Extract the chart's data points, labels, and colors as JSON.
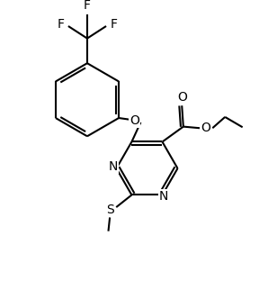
{
  "bg_color": "#ffffff",
  "line_color": "#000000",
  "line_width": 1.5,
  "font_size": 9,
  "figsize": [
    2.88,
    3.32
  ],
  "dpi": 100,
  "xlim": [
    0,
    8.5
  ],
  "ylim": [
    0,
    9.8
  ]
}
